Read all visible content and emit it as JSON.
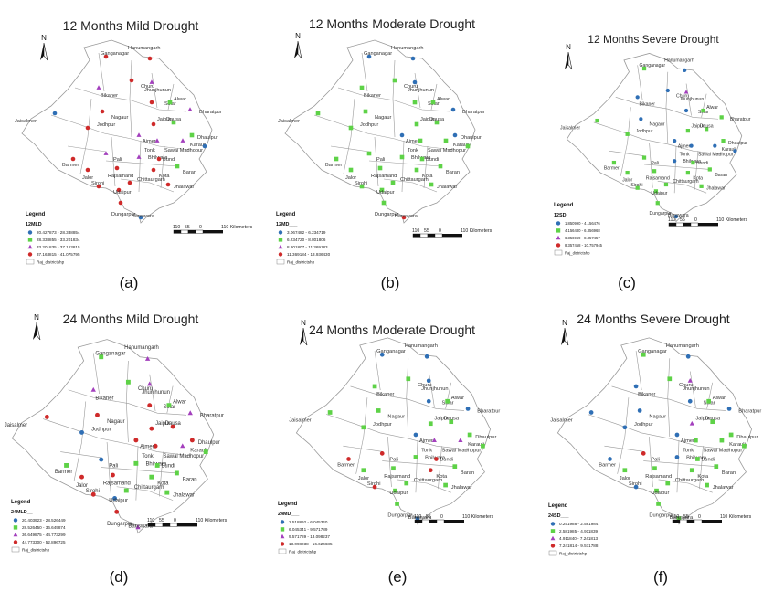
{
  "colors": {
    "boundary": "#9a9a9a",
    "sym_blue": "#2f6fb5",
    "sym_green": "#5ed247",
    "sym_purple": "#a33fbd",
    "sym_red": "#cf2a2a",
    "text": "#333333"
  },
  "north_label": "N",
  "legend_title": "Legend",
  "scale": {
    "l1": "110",
    "l2": "55",
    "l3": "0",
    "l4": "110 Kilometers"
  },
  "district_layer_label": "Raj_districtshp",
  "districts": [
    "Ganganagar",
    "Hanumangarh",
    "Bikaner",
    "Churu",
    "Jhunjhunun",
    "Sikar",
    "Jaisalmer",
    "Nagaur",
    "Alwar",
    "Bharatpur",
    "Jodhpur",
    "Jaipur",
    "Dausa",
    "Ajmer",
    "Tonk",
    "Sawai Madhopur",
    "Karauli",
    "Dhaulpur",
    "Barmer",
    "Pali",
    "Bhilwara",
    "Bundi",
    "Jalor",
    "Rajsamand",
    "Kota",
    "Baran",
    "Sirohi",
    "Chittaurgarh",
    "Udaipur",
    "Jhalawar",
    "Dungarpur",
    "Banswara"
  ],
  "panels": [
    {
      "id": "a",
      "title": "12 Months Mild Drought",
      "caption": "(a)",
      "layer": "12MLD",
      "legend_classes": [
        "20.427873 - 28.338854",
        "28.338855 - 33.201834",
        "33.201835 - 37.163815",
        "37.163815 - 41.075795"
      ],
      "classes": [
        3,
        3,
        2,
        3,
        2,
        3,
        0,
        3,
        1,
        2,
        3,
        3,
        1,
        2,
        2,
        2,
        1,
        0,
        3,
        2,
        2,
        3,
        3,
        3,
        3,
        1,
        3,
        3,
        3,
        3,
        3,
        0
      ]
    },
    {
      "id": "b",
      "title": "12 Months Moderate Drought",
      "caption": "(b)",
      "layer": "12MD___",
      "legend_classes": [
        "3.067482 - 6.234719",
        "6.234720 - 8.801806",
        "8.801807 - 11.369183",
        "11.369184 - 13.936430"
      ],
      "classes": [
        0,
        0,
        1,
        1,
        0,
        1,
        1,
        1,
        1,
        0,
        1,
        1,
        1,
        0,
        1,
        1,
        0,
        1,
        1,
        1,
        1,
        1,
        1,
        1,
        1,
        1,
        1,
        1,
        1,
        1,
        1,
        3
      ]
    },
    {
      "id": "c",
      "title": "12 Months Severe Drought",
      "caption": "(c)",
      "layer": "12SD___",
      "legend_classes": [
        "1.850990 - 4.156476",
        "4.156480 - 6.356968",
        "6.356969 - 8.357457",
        "8.357458 - 10.757945"
      ],
      "classes": [
        1,
        0,
        0,
        0,
        2,
        0,
        1,
        0,
        1,
        1,
        1,
        1,
        1,
        0,
        0,
        0,
        1,
        0,
        1,
        1,
        0,
        1,
        1,
        1,
        1,
        1,
        1,
        1,
        1,
        1,
        1,
        0
      ]
    },
    {
      "id": "d",
      "title": "24 Months Mild Drought",
      "caption": "(d)",
      "layer": "24MLD__",
      "legend_classes": [
        "20.403923 - 28.526449",
        "28.526450 - 36.649874",
        "36.649875 - 44.773299",
        "44.773300 - 52.896725"
      ],
      "classes": [
        1,
        2,
        2,
        1,
        2,
        3,
        3,
        3,
        1,
        2,
        0,
        3,
        3,
        3,
        3,
        2,
        3,
        1,
        1,
        0,
        1,
        1,
        3,
        3,
        1,
        1,
        3,
        1,
        0,
        1,
        3,
        2
      ]
    },
    {
      "id": "e",
      "title": "24 Months Moderate Drought",
      "caption": "(e)",
      "layer": "24MD___",
      "legend_classes": [
        "2.518892 - 6.045340",
        "6.045341 - 9.571789",
        "9.571789 - 13.098237",
        "13.098238 - 16.624685"
      ],
      "classes": [
        0,
        0,
        1,
        1,
        0,
        0,
        1,
        1,
        1,
        0,
        1,
        1,
        1,
        0,
        2,
        2,
        1,
        1,
        3,
        3,
        1,
        3,
        1,
        1,
        3,
        1,
        3,
        1,
        1,
        1,
        1,
        0
      ]
    },
    {
      "id": "f",
      "title": "24 Months Severe Drought",
      "caption": "(f)",
      "layer": "24SD___",
      "legend_classes": [
        "0.251988 - 2.581984",
        "2.581985 - 4.911839",
        "4.911840 - 7.241813",
        "7.241814 - 9.571788"
      ],
      "classes": [
        1,
        0,
        0,
        1,
        2,
        0,
        0,
        0,
        1,
        0,
        0,
        2,
        1,
        0,
        1,
        1,
        1,
        1,
        0,
        3,
        0,
        1,
        1,
        1,
        1,
        1,
        0,
        1,
        1,
        1,
        1,
        1
      ]
    }
  ]
}
